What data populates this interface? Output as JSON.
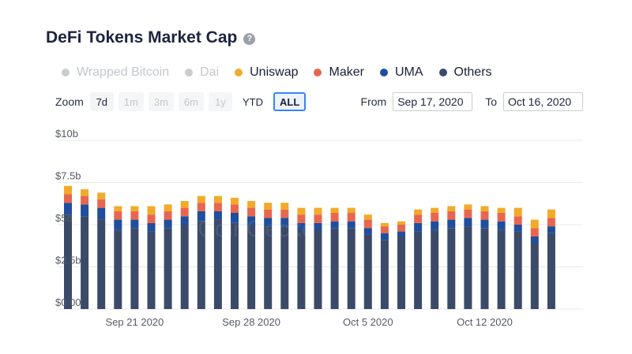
{
  "header": {
    "title": "DeFi Tokens Market Cap",
    "help_icon": "?"
  },
  "legend": [
    {
      "label": "Wrapped Bitcoin",
      "color": "#c9ccd1",
      "enabled": false
    },
    {
      "label": "Dai",
      "color": "#c9ccd1",
      "enabled": false
    },
    {
      "label": "Uniswap",
      "color": "#f2aa2a",
      "enabled": true
    },
    {
      "label": "Maker",
      "color": "#e8664f",
      "enabled": true
    },
    {
      "label": "UMA",
      "color": "#1f4e9c",
      "enabled": true
    },
    {
      "label": "Others",
      "color": "#3b4a69",
      "enabled": true
    }
  ],
  "zoom": {
    "label": "Zoom",
    "buttons": [
      {
        "label": "7d",
        "state": "normal"
      },
      {
        "label": "1m",
        "state": "disabled"
      },
      {
        "label": "3m",
        "state": "disabled"
      },
      {
        "label": "6m",
        "state": "disabled"
      },
      {
        "label": "1y",
        "state": "disabled"
      },
      {
        "label": "YTD",
        "state": "plain"
      },
      {
        "label": "ALL",
        "state": "active"
      }
    ]
  },
  "range": {
    "from_label": "From",
    "from_value": "Sep 17, 2020",
    "to_label": "To",
    "to_value": "Oct 16, 2020"
  },
  "watermark": "CoinGecko",
  "chart_data": {
    "type": "bar",
    "stacked": true,
    "x_tick_labels": [
      "Sep 21 2020",
      "Sep 28 2020",
      "Oct 5 2020",
      "Oct 12 2020"
    ],
    "x_tick_indices": [
      4,
      11,
      18,
      25
    ],
    "y_tick_labels": [
      "$0.00",
      "$2.5b",
      "$5b",
      "$7.5b",
      "$10b"
    ],
    "ylim": [
      0,
      10
    ],
    "y_unit": "billions USD",
    "categories": [
      "Sep 17",
      "Sep 18",
      "Sep 19",
      "Sep 20",
      "Sep 21",
      "Sep 22",
      "Sep 23",
      "Sep 24",
      "Sep 25",
      "Sep 26",
      "Sep 27",
      "Sep 28",
      "Sep 29",
      "Sep 30",
      "Oct 1",
      "Oct 2",
      "Oct 3",
      "Oct 4",
      "Oct 5",
      "Oct 6",
      "Oct 7",
      "Oct 8",
      "Oct 9",
      "Oct 10",
      "Oct 11",
      "Oct 12",
      "Oct 13",
      "Oct 14",
      "Oct 15",
      "Oct 16"
    ],
    "series": [
      {
        "name": "Others",
        "color": "#3b4a69",
        "values": [
          5.6,
          5.5,
          5.3,
          4.7,
          4.8,
          4.6,
          4.8,
          5.0,
          5.2,
          5.3,
          5.1,
          5.0,
          4.9,
          4.9,
          4.7,
          4.7,
          4.8,
          4.8,
          4.4,
          4.1,
          4.3,
          4.6,
          4.7,
          4.8,
          4.9,
          4.8,
          4.7,
          4.6,
          3.9,
          4.5
        ]
      },
      {
        "name": "UMA",
        "color": "#1f4e9c",
        "values": [
          0.7,
          0.7,
          0.7,
          0.6,
          0.5,
          0.5,
          0.5,
          0.5,
          0.6,
          0.5,
          0.6,
          0.5,
          0.5,
          0.5,
          0.4,
          0.4,
          0.4,
          0.4,
          0.4,
          0.4,
          0.3,
          0.5,
          0.5,
          0.5,
          0.5,
          0.5,
          0.5,
          0.4,
          0.4,
          0.4
        ]
      },
      {
        "name": "Maker",
        "color": "#e8664f",
        "values": [
          0.5,
          0.5,
          0.5,
          0.5,
          0.5,
          0.5,
          0.5,
          0.5,
          0.5,
          0.5,
          0.5,
          0.5,
          0.5,
          0.5,
          0.5,
          0.5,
          0.5,
          0.5,
          0.5,
          0.4,
          0.4,
          0.5,
          0.5,
          0.5,
          0.5,
          0.5,
          0.5,
          0.5,
          0.5,
          0.5
        ]
      },
      {
        "name": "Uniswap",
        "color": "#f2aa2a",
        "values": [
          0.5,
          0.4,
          0.4,
          0.3,
          0.3,
          0.5,
          0.4,
          0.4,
          0.4,
          0.4,
          0.4,
          0.4,
          0.4,
          0.4,
          0.4,
          0.4,
          0.3,
          0.3,
          0.3,
          0.2,
          0.2,
          0.3,
          0.3,
          0.3,
          0.3,
          0.3,
          0.3,
          0.5,
          0.5,
          0.5
        ]
      }
    ]
  }
}
